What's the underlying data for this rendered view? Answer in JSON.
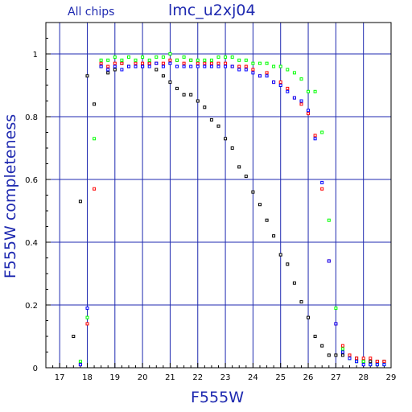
{
  "chart_data": {
    "type": "scatter",
    "title": "lmc_u2xj04",
    "subtitle": "All chips",
    "xlabel": "F555W",
    "ylabel": "F555W completeness",
    "xlim": [
      16.5,
      29
    ],
    "ylim": [
      0,
      1.1
    ],
    "x_ticks": [
      "17",
      "18",
      "19",
      "20",
      "21",
      "22",
      "23",
      "24",
      "25",
      "26",
      "27",
      "28",
      "29"
    ],
    "y_ticks": [
      "0",
      "0.2",
      "0.4",
      "0.6",
      "0.8",
      "1"
    ],
    "grid": true,
    "colors": {
      "frame": "#000000",
      "grid": "#1f2ab0",
      "labels": "#1f2ab0"
    },
    "series": [
      {
        "color": "#000000",
        "points": [
          [
            17.5,
            0.1
          ],
          [
            17.75,
            0.53
          ],
          [
            18.0,
            0.93
          ],
          [
            18.25,
            0.84
          ],
          [
            18.5,
            0.96
          ],
          [
            18.75,
            0.94
          ],
          [
            19.0,
            0.95
          ],
          [
            19.25,
            0.97
          ],
          [
            19.5,
            0.96
          ],
          [
            19.75,
            0.96
          ],
          [
            20.0,
            0.96
          ],
          [
            20.25,
            0.97
          ],
          [
            20.5,
            0.95
          ],
          [
            20.75,
            0.93
          ],
          [
            21.0,
            0.91
          ],
          [
            21.25,
            0.89
          ],
          [
            21.5,
            0.87
          ],
          [
            21.75,
            0.87
          ],
          [
            22.0,
            0.85
          ],
          [
            22.25,
            0.83
          ],
          [
            22.5,
            0.79
          ],
          [
            22.75,
            0.77
          ],
          [
            23.0,
            0.73
          ],
          [
            23.25,
            0.7
          ],
          [
            23.5,
            0.64
          ],
          [
            23.75,
            0.61
          ],
          [
            24.0,
            0.56
          ],
          [
            24.25,
            0.52
          ],
          [
            24.5,
            0.47
          ],
          [
            24.75,
            0.42
          ],
          [
            25.0,
            0.36
          ],
          [
            25.25,
            0.33
          ],
          [
            25.5,
            0.27
          ],
          [
            25.75,
            0.21
          ],
          [
            26.0,
            0.16
          ],
          [
            26.25,
            0.1
          ],
          [
            26.5,
            0.07
          ],
          [
            26.75,
            0.04
          ],
          [
            27.0,
            0.04
          ],
          [
            27.25,
            0.04
          ],
          [
            27.5,
            0.03
          ],
          [
            27.75,
            0.03
          ],
          [
            28.0,
            0.02
          ],
          [
            28.25,
            0.02
          ],
          [
            28.5,
            0.02
          ],
          [
            28.75,
            0.02
          ]
        ]
      },
      {
        "color": "#ff0000",
        "points": [
          [
            17.75,
            0.01
          ],
          [
            18.0,
            0.14
          ],
          [
            18.25,
            0.57
          ],
          [
            18.5,
            0.97
          ],
          [
            18.75,
            0.96
          ],
          [
            19.0,
            0.97
          ],
          [
            19.25,
            0.97
          ],
          [
            19.5,
            0.96
          ],
          [
            19.75,
            0.97
          ],
          [
            20.0,
            0.97
          ],
          [
            20.25,
            0.97
          ],
          [
            20.5,
            0.97
          ],
          [
            20.75,
            0.97
          ],
          [
            21.0,
            0.98
          ],
          [
            21.25,
            0.98
          ],
          [
            21.5,
            0.97
          ],
          [
            21.75,
            0.98
          ],
          [
            22.0,
            0.97
          ],
          [
            22.25,
            0.97
          ],
          [
            22.5,
            0.97
          ],
          [
            22.75,
            0.97
          ],
          [
            23.0,
            0.97
          ],
          [
            23.25,
            0.96
          ],
          [
            23.5,
            0.96
          ],
          [
            23.75,
            0.96
          ],
          [
            24.0,
            0.95
          ],
          [
            24.25,
            0.93
          ],
          [
            24.5,
            0.94
          ],
          [
            24.75,
            0.91
          ],
          [
            25.0,
            0.91
          ],
          [
            25.25,
            0.89
          ],
          [
            25.5,
            0.86
          ],
          [
            25.75,
            0.84
          ],
          [
            26.0,
            0.81
          ],
          [
            26.25,
            0.74
          ],
          [
            26.5,
            0.57
          ],
          [
            26.75,
            0.34
          ],
          [
            27.0,
            0.14
          ],
          [
            27.25,
            0.07
          ],
          [
            27.5,
            0.04
          ],
          [
            27.75,
            0.03
          ],
          [
            28.0,
            0.03
          ],
          [
            28.25,
            0.03
          ],
          [
            28.5,
            0.02
          ],
          [
            28.75,
            0.02
          ]
        ]
      },
      {
        "color": "#00ff00",
        "points": [
          [
            17.75,
            0.02
          ],
          [
            18.0,
            0.16
          ],
          [
            18.25,
            0.73
          ],
          [
            18.5,
            0.98
          ],
          [
            18.75,
            0.98
          ],
          [
            19.0,
            0.99
          ],
          [
            19.25,
            0.98
          ],
          [
            19.5,
            0.99
          ],
          [
            19.75,
            0.98
          ],
          [
            20.0,
            0.99
          ],
          [
            20.25,
            0.98
          ],
          [
            20.5,
            0.99
          ],
          [
            20.75,
            0.99
          ],
          [
            21.0,
            1.0
          ],
          [
            21.25,
            0.98
          ],
          [
            21.5,
            0.99
          ],
          [
            21.75,
            0.98
          ],
          [
            22.0,
            0.98
          ],
          [
            22.25,
            0.98
          ],
          [
            22.5,
            0.98
          ],
          [
            22.75,
            0.99
          ],
          [
            23.0,
            0.99
          ],
          [
            23.25,
            0.99
          ],
          [
            23.5,
            0.98
          ],
          [
            23.75,
            0.98
          ],
          [
            24.0,
            0.97
          ],
          [
            24.25,
            0.97
          ],
          [
            24.5,
            0.97
          ],
          [
            24.75,
            0.96
          ],
          [
            25.0,
            0.96
          ],
          [
            25.25,
            0.95
          ],
          [
            25.5,
            0.94
          ],
          [
            25.75,
            0.92
          ],
          [
            26.0,
            0.88
          ],
          [
            26.25,
            0.88
          ],
          [
            26.5,
            0.75
          ],
          [
            26.75,
            0.47
          ],
          [
            27.0,
            0.19
          ],
          [
            27.25,
            0.06
          ],
          [
            27.5,
            0.03
          ],
          [
            27.75,
            0.02
          ],
          [
            28.0,
            0.02
          ],
          [
            28.25,
            0.01
          ],
          [
            28.5,
            0.01
          ],
          [
            28.75,
            0.01
          ]
        ]
      },
      {
        "color": "#0000ff",
        "points": [
          [
            17.75,
            0.01
          ],
          [
            18.0,
            0.19
          ],
          [
            18.5,
            0.96
          ],
          [
            18.75,
            0.95
          ],
          [
            19.0,
            0.96
          ],
          [
            19.25,
            0.95
          ],
          [
            19.5,
            0.96
          ],
          [
            19.75,
            0.96
          ],
          [
            20.0,
            0.96
          ],
          [
            20.25,
            0.96
          ],
          [
            20.5,
            0.97
          ],
          [
            20.75,
            0.96
          ],
          [
            21.0,
            0.97
          ],
          [
            21.25,
            0.96
          ],
          [
            21.5,
            0.96
          ],
          [
            21.75,
            0.96
          ],
          [
            22.0,
            0.96
          ],
          [
            22.25,
            0.96
          ],
          [
            22.5,
            0.96
          ],
          [
            22.75,
            0.96
          ],
          [
            23.0,
            0.96
          ],
          [
            23.25,
            0.96
          ],
          [
            23.5,
            0.95
          ],
          [
            23.75,
            0.95
          ],
          [
            24.0,
            0.94
          ],
          [
            24.25,
            0.93
          ],
          [
            24.5,
            0.93
          ],
          [
            24.75,
            0.91
          ],
          [
            25.0,
            0.9
          ],
          [
            25.25,
            0.88
          ],
          [
            25.5,
            0.86
          ],
          [
            25.75,
            0.85
          ],
          [
            26.0,
            0.82
          ],
          [
            26.25,
            0.73
          ],
          [
            26.5,
            0.59
          ],
          [
            26.75,
            0.34
          ],
          [
            27.0,
            0.14
          ],
          [
            27.25,
            0.05
          ],
          [
            27.5,
            0.03
          ],
          [
            27.75,
            0.02
          ],
          [
            28.0,
            0.01
          ],
          [
            28.25,
            0.01
          ],
          [
            28.5,
            0.01
          ],
          [
            28.75,
            0.01
          ]
        ]
      }
    ]
  }
}
